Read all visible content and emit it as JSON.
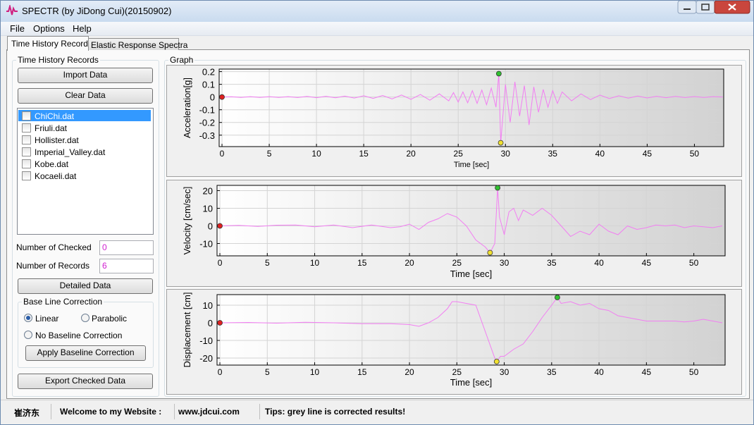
{
  "window": {
    "title": "SPECTR (by JiDong Cui)(20150902)"
  },
  "menu": [
    "File",
    "Options",
    "Help"
  ],
  "tabs": [
    "Time History Records",
    "Elastic Response Spectra"
  ],
  "records_panel": {
    "title": "Time History Records",
    "import_button": "Import Data",
    "clear_button": "Clear Data",
    "files": [
      "ChiChi.dat",
      "Friuli.dat",
      "Hollister.dat",
      "Imperial_Valley.dat",
      "Kobe.dat",
      "Kocaeli.dat"
    ],
    "checked_label": "Number of Checked",
    "checked_value": 0,
    "records_label": "Number of Records",
    "records_value": 6,
    "detailed_button": "Detailed Data",
    "baseline": {
      "title": "Base Line Correction",
      "options": [
        "Linear",
        "Parabolic",
        "No Baseline Correction"
      ],
      "button": "Apply Baseline Correction"
    },
    "export_button": "Export Checked Data"
  },
  "graph_title": "Graph",
  "status": [
    "崔济东",
    "Welcome to my Website :",
    "www.jdcui.com",
    "Tips: grey line is corrected results!"
  ],
  "chart_data": [
    {
      "type": "line",
      "x_label": "Time [sec]",
      "y_label": "Acceleration[g]",
      "color": "#f27ef2",
      "grid": true,
      "xlim": [
        -0.3,
        53.1
      ],
      "ylim": [
        -0.39,
        0.22
      ],
      "xticks": [
        0,
        5,
        10,
        15,
        20,
        25,
        30,
        35,
        40,
        45,
        50
      ],
      "yticks": [
        0.2,
        0.1,
        0,
        -0.1,
        -0.2,
        -0.3
      ],
      "x": [
        0,
        1,
        2,
        3,
        4,
        5,
        6,
        7,
        8,
        9,
        10,
        11,
        12,
        13,
        14,
        15,
        16,
        17,
        18,
        19,
        20,
        21,
        22,
        23,
        24,
        24.5,
        25,
        25.5,
        26,
        26.5,
        27,
        27.5,
        28,
        28.5,
        29,
        29.3,
        29.5,
        30,
        30.5,
        31,
        31.5,
        32,
        32.5,
        33,
        33.5,
        34,
        34.5,
        35,
        35.5,
        36,
        37,
        38,
        39,
        40,
        41,
        42,
        43,
        44,
        45,
        46,
        47,
        48,
        49,
        50,
        51,
        52,
        53
      ],
      "values": [
        0,
        0.002,
        -0.003,
        0.003,
        -0.003,
        0.003,
        -0.003,
        0.003,
        -0.004,
        0.005,
        -0.005,
        0.006,
        -0.006,
        0.007,
        -0.008,
        0.01,
        -0.011,
        0.012,
        -0.015,
        0.016,
        -0.018,
        0.02,
        -0.025,
        0.025,
        -0.03,
        0.035,
        -0.04,
        0.04,
        -0.045,
        0.05,
        -0.05,
        0.055,
        -0.06,
        0.07,
        -0.08,
        0.184,
        -0.36,
        0.1,
        -0.2,
        0.12,
        -0.15,
        0.09,
        -0.22,
        0.08,
        -0.12,
        0.06,
        -0.08,
        0.05,
        -0.05,
        0.04,
        -0.03,
        0.025,
        -0.02,
        0.015,
        -0.012,
        0.01,
        -0.009,
        0.008,
        -0.007,
        0.006,
        -0.005,
        0.005,
        -0.004,
        0.004,
        -0.003,
        0.003,
        0
      ],
      "markers": {
        "x": [
          0,
          29.3,
          29.5
        ],
        "values": [
          0,
          0.184,
          -0.36
        ],
        "colors": [
          "#e02020",
          "#30c030",
          "#f0e030"
        ]
      }
    },
    {
      "type": "line",
      "x_label": "Time [sec]",
      "y_label": "Velocity [cm/sec]",
      "color": "#f27ef2",
      "grid": true,
      "xlim": [
        -0.3,
        53.3
      ],
      "ylim": [
        -17,
        23
      ],
      "xticks": [
        0,
        5,
        10,
        15,
        20,
        25,
        30,
        35,
        40,
        45,
        50
      ],
      "yticks": [
        20,
        10,
        0,
        -10
      ],
      "x": [
        0,
        2,
        4,
        6,
        8,
        10,
        12,
        14,
        16,
        18,
        19,
        20,
        21,
        22,
        23,
        24,
        25,
        26,
        27,
        28,
        28.5,
        29,
        29.3,
        29.5,
        30,
        30.5,
        31,
        31.5,
        32,
        33,
        34,
        35,
        36,
        37,
        38,
        39,
        40,
        41,
        42,
        43,
        44,
        45,
        46,
        47,
        48,
        49,
        50,
        51,
        52,
        53
      ],
      "values": [
        0,
        0.3,
        -0.3,
        0.4,
        0.5,
        -0.5,
        0.5,
        -1,
        0.5,
        -1,
        -0.5,
        1,
        -2,
        2,
        4,
        7,
        5,
        0,
        -8,
        -12,
        -15.2,
        -10,
        21.6,
        5,
        -5,
        8,
        10,
        3,
        9,
        6,
        10,
        6,
        0,
        -6,
        -3,
        -5,
        1,
        -3,
        -5,
        0,
        -2,
        -1,
        0.5,
        0,
        0.5,
        -1,
        0,
        -0.5,
        -1,
        0
      ],
      "markers": {
        "x": [
          0,
          28.5,
          29.3
        ],
        "values": [
          0,
          -15.2,
          21.6
        ],
        "colors": [
          "#e02020",
          "#f0e030",
          "#30c030"
        ]
      }
    },
    {
      "type": "line",
      "x_label": "Time [sec]",
      "y_label": "Displacement [cm]",
      "color": "#f27ef2",
      "grid": true,
      "xlim": [
        -0.3,
        53.3
      ],
      "ylim": [
        -24,
        16
      ],
      "xticks": [
        0,
        5,
        10,
        15,
        20,
        25,
        30,
        35,
        40,
        45,
        50
      ],
      "yticks": [
        10,
        0,
        -10,
        -20
      ],
      "x": [
        0,
        3,
        6,
        9,
        12,
        15,
        18,
        20,
        21,
        22,
        23,
        24,
        24.5,
        25,
        26,
        27,
        28,
        29,
        29.2,
        29.6,
        30,
        31,
        32,
        33,
        34,
        35,
        35.6,
        36,
        37,
        38,
        39,
        40,
        41,
        42,
        43,
        44,
        45,
        46,
        47,
        48,
        49,
        50,
        51,
        52,
        53
      ],
      "values": [
        0,
        0.2,
        -0.2,
        0.3,
        0,
        -0.5,
        -0.5,
        -1,
        -2,
        0,
        3,
        8,
        12,
        12,
        11,
        10,
        -5,
        -20,
        -22,
        -19,
        -19,
        -15,
        -12,
        -5,
        3,
        10,
        14.4,
        11,
        12,
        10,
        11,
        8,
        7,
        4,
        3,
        2,
        1,
        1,
        1,
        1,
        0.5,
        1,
        2,
        1,
        0
      ],
      "markers": {
        "x": [
          0,
          29.2,
          35.6
        ],
        "values": [
          0,
          -22,
          14.4
        ],
        "colors": [
          "#e02020",
          "#f0e030",
          "#30c030"
        ]
      }
    }
  ]
}
